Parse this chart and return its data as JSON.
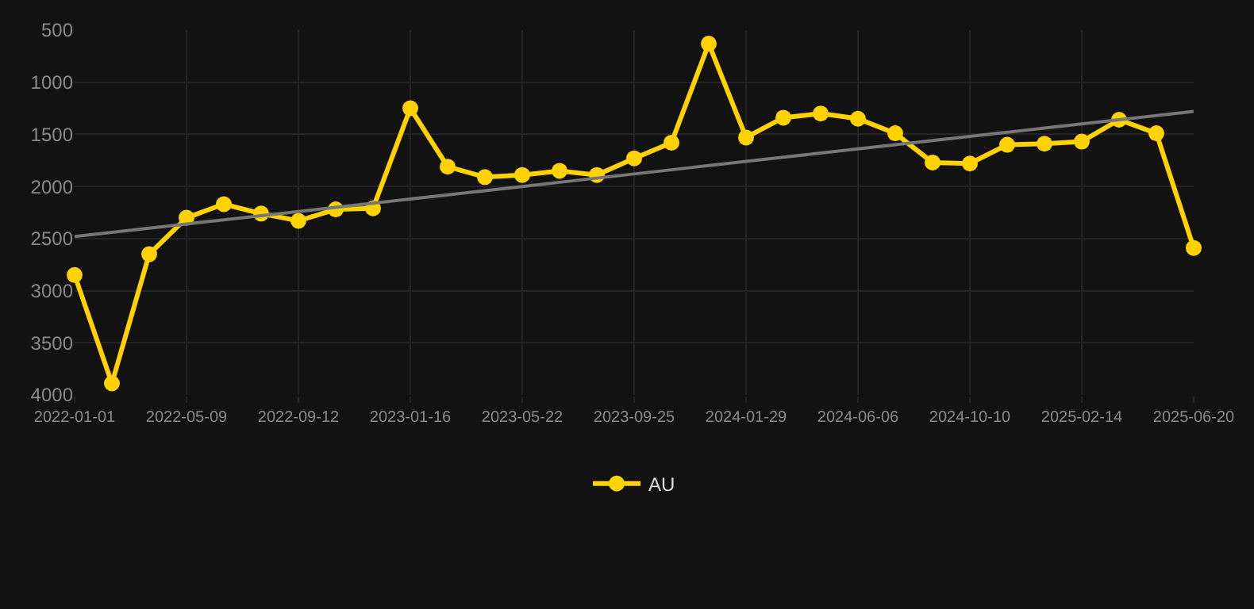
{
  "chart_data": {
    "type": "line",
    "categories": [
      "2022-01-01",
      null,
      null,
      "2022-05-09",
      null,
      null,
      "2022-09-12",
      null,
      null,
      "2023-01-16",
      null,
      null,
      "2023-05-22",
      null,
      null,
      "2023-09-25",
      null,
      null,
      "2024-01-29",
      null,
      null,
      "2024-06-06",
      null,
      null,
      "2024-10-10",
      null,
      null,
      "2025-02-14",
      null,
      null,
      "2025-06-20"
    ],
    "series": [
      {
        "name": "AU",
        "color": "#ffd200",
        "marker": "circle",
        "values": [
          2850,
          3890,
          2650,
          2300,
          2170,
          2260,
          2330,
          2220,
          2210,
          1250,
          1810,
          1910,
          1890,
          1850,
          1890,
          1730,
          1580,
          630,
          1530,
          1340,
          1300,
          1350,
          1490,
          1770,
          1780,
          1600,
          1590,
          1570,
          1360,
          1490,
          2590
        ]
      },
      {
        "type": "line",
        "color": "#777777",
        "marker": "none",
        "values": [
          2480,
          2440,
          2400,
          2360,
          2320,
          2280,
          2240,
          2200,
          2160,
          2120,
          2080,
          2040,
          2000,
          1960,
          1920,
          1880,
          1840,
          1800,
          1760,
          1720,
          1680,
          1640,
          1600,
          1560,
          1520,
          1480,
          1440,
          1400,
          1360,
          1320,
          1280
        ]
      }
    ],
    "ylim": [
      4000,
      500
    ],
    "yticks": [
      500,
      1000,
      1500,
      2000,
      2500,
      3000,
      3500,
      4000
    ],
    "grid": true,
    "legend": "bottom"
  }
}
